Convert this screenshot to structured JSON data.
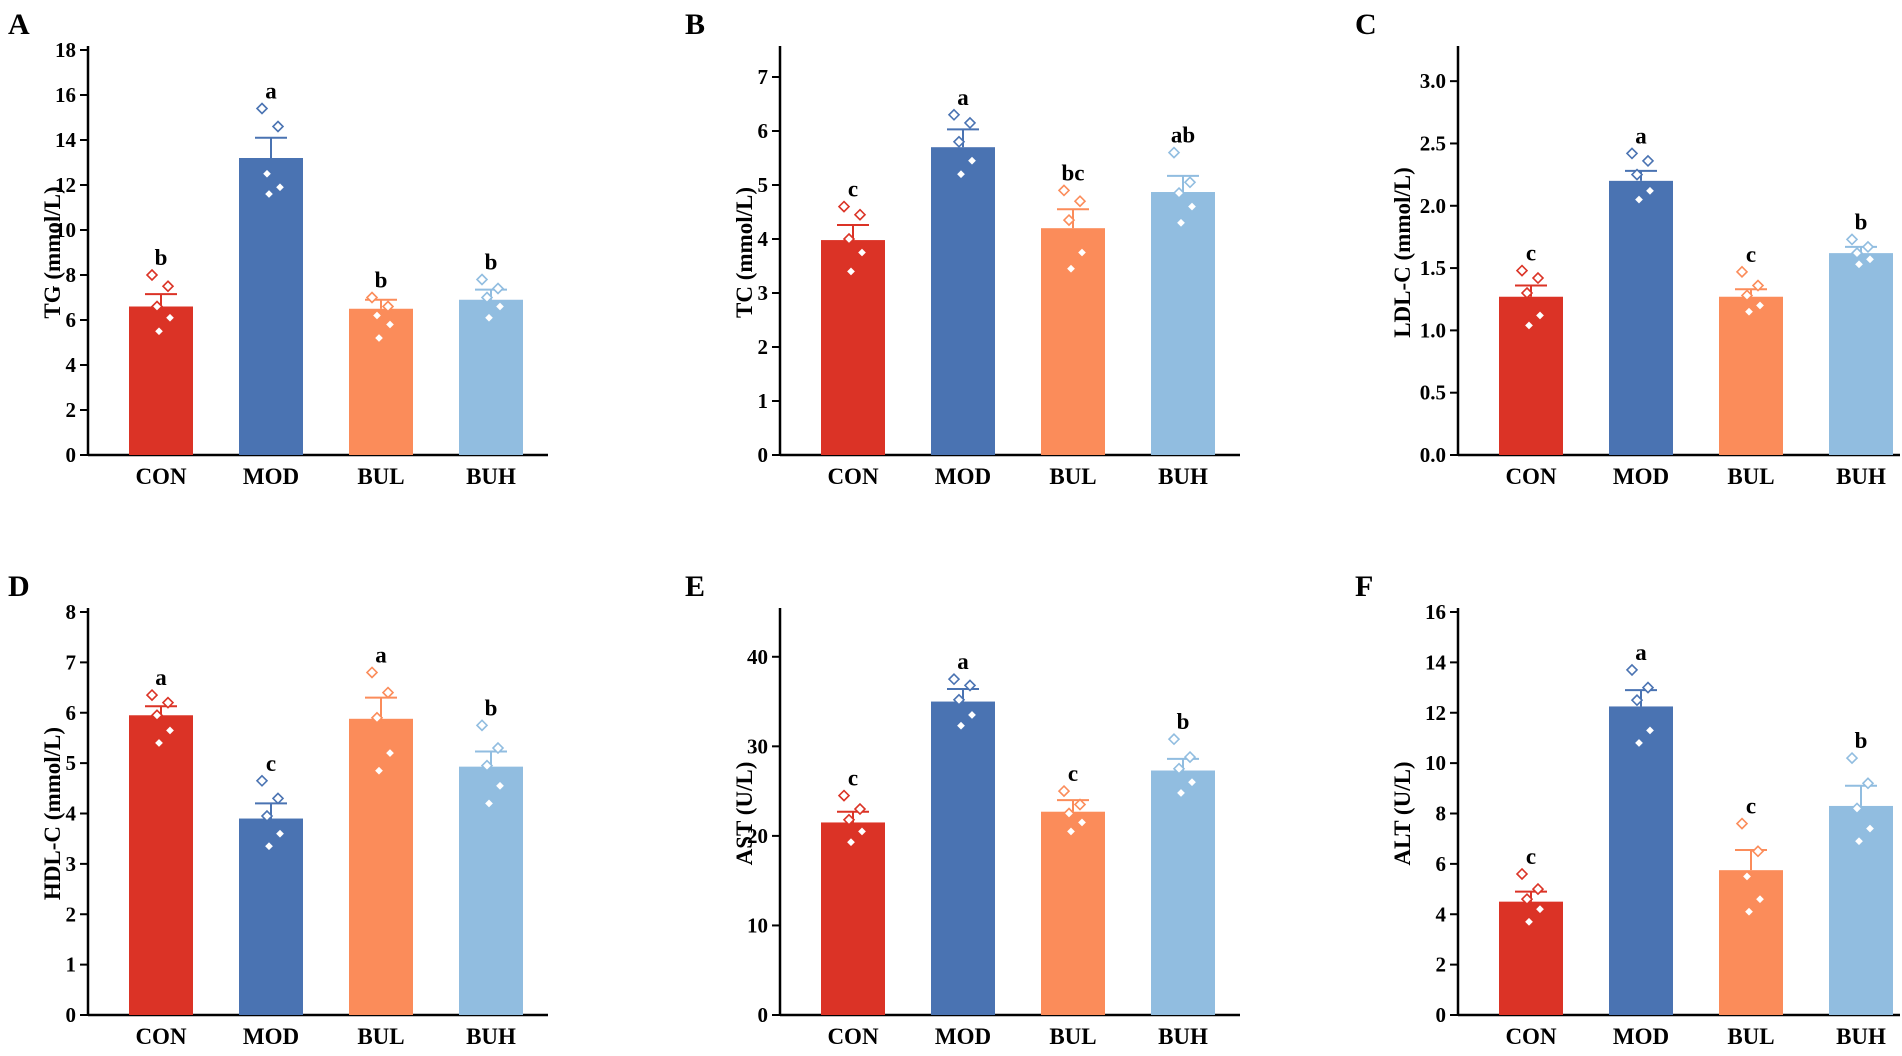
{
  "colors": {
    "CON": "#db3326",
    "MOD": "#4a73b2",
    "BUL": "#fb8c5a",
    "BUH": "#91bde0"
  },
  "chart_data": [
    {
      "panel": "A",
      "type": "bar",
      "ylabel": "TG (mmol/L)",
      "categories": [
        "CON",
        "MOD",
        "BUL",
        "BUH"
      ],
      "values": [
        6.6,
        13.2,
        6.5,
        6.9
      ],
      "errors": [
        0.55,
        0.9,
        0.4,
        0.45
      ],
      "significance": [
        "b",
        "a",
        "b",
        "b"
      ],
      "points": [
        [
          8.0,
          7.5,
          6.6,
          6.1,
          5.5
        ],
        [
          15.4,
          14.6,
          12.5,
          11.9,
          11.6
        ],
        [
          7.0,
          6.6,
          6.2,
          5.8,
          5.2
        ],
        [
          7.8,
          7.4,
          7.0,
          6.6,
          6.1
        ]
      ],
      "ylim": [
        0,
        18
      ],
      "yticks": [
        0,
        2,
        4,
        6,
        8,
        10,
        12,
        14,
        16,
        18
      ],
      "ytick_labels": [
        "0",
        "2",
        "4",
        "6",
        "8",
        "10",
        "12",
        "14",
        "16",
        "18"
      ]
    },
    {
      "panel": "B",
      "type": "bar",
      "ylabel": "TC (mmol/L)",
      "categories": [
        "CON",
        "MOD",
        "BUL",
        "BUH"
      ],
      "values": [
        3.98,
        5.7,
        4.2,
        4.87
      ],
      "errors": [
        0.28,
        0.33,
        0.35,
        0.3
      ],
      "significance": [
        "c",
        "a",
        "bc",
        "ab"
      ],
      "points": [
        [
          4.6,
          4.45,
          4.0,
          3.75,
          3.4
        ],
        [
          6.3,
          6.15,
          5.8,
          5.45,
          5.2
        ],
        [
          4.9,
          4.7,
          4.35,
          3.75,
          3.45
        ],
        [
          5.6,
          5.05,
          4.85,
          4.6,
          4.3
        ]
      ],
      "ylim": [
        0,
        7.5
      ],
      "yticks": [
        0,
        1,
        2,
        3,
        4,
        5,
        6,
        7
      ],
      "ytick_labels": [
        "0",
        "1",
        "2",
        "3",
        "4",
        "5",
        "6",
        "7"
      ]
    },
    {
      "panel": "C",
      "type": "bar",
      "ylabel": "LDL-C (mmol/L)",
      "categories": [
        "CON",
        "MOD",
        "BUL",
        "BUH"
      ],
      "values": [
        1.27,
        2.2,
        1.27,
        1.62
      ],
      "errors": [
        0.09,
        0.08,
        0.06,
        0.05
      ],
      "significance": [
        "c",
        "a",
        "c",
        "b"
      ],
      "points": [
        [
          1.48,
          1.42,
          1.3,
          1.12,
          1.04
        ],
        [
          2.42,
          2.36,
          2.25,
          2.12,
          2.05
        ],
        [
          1.47,
          1.36,
          1.28,
          1.2,
          1.15
        ],
        [
          1.73,
          1.67,
          1.62,
          1.57,
          1.53
        ]
      ],
      "ylim": [
        0,
        3.25
      ],
      "yticks": [
        0,
        0.5,
        1.0,
        1.5,
        2.0,
        2.5,
        3.0
      ],
      "ytick_labels": [
        "0.0",
        "0.5",
        "1.0",
        "1.5",
        "2.0",
        "2.5",
        "3.0"
      ]
    },
    {
      "panel": "D",
      "type": "bar",
      "ylabel": "HDL-C (mmol/L)",
      "categories": [
        "CON",
        "MOD",
        "BUL",
        "BUH"
      ],
      "values": [
        5.95,
        3.9,
        5.88,
        4.93
      ],
      "errors": [
        0.18,
        0.3,
        0.42,
        0.3
      ],
      "significance": [
        "a",
        "c",
        "a",
        "b"
      ],
      "points": [
        [
          6.35,
          6.2,
          5.95,
          5.65,
          5.4
        ],
        [
          4.65,
          4.3,
          3.95,
          3.6,
          3.35
        ],
        [
          6.8,
          6.4,
          5.9,
          5.2,
          4.85
        ],
        [
          5.75,
          5.3,
          4.95,
          4.55,
          4.2
        ]
      ],
      "ylim": [
        0,
        8
      ],
      "yticks": [
        0,
        1,
        2,
        3,
        4,
        5,
        6,
        7,
        8
      ],
      "ytick_labels": [
        "0",
        "1",
        "2",
        "3",
        "4",
        "5",
        "6",
        "7",
        "8"
      ]
    },
    {
      "panel": "E",
      "type": "bar",
      "ylabel": "AST (U/L)",
      "categories": [
        "CON",
        "MOD",
        "BUL",
        "BUH"
      ],
      "values": [
        21.5,
        35.0,
        22.7,
        27.3
      ],
      "errors": [
        1.2,
        1.4,
        1.3,
        1.3
      ],
      "significance": [
        "c",
        "a",
        "c",
        "b"
      ],
      "points": [
        [
          24.5,
          23.0,
          21.8,
          20.5,
          19.3
        ],
        [
          37.5,
          36.8,
          35.2,
          33.5,
          32.3
        ],
        [
          25.0,
          23.5,
          22.5,
          21.5,
          20.5
        ],
        [
          30.8,
          28.8,
          27.5,
          26.0,
          24.8
        ]
      ],
      "ylim": [
        0,
        45
      ],
      "yticks": [
        0,
        10,
        20,
        30,
        40
      ],
      "ytick_labels": [
        "0",
        "10",
        "20",
        "30",
        "40"
      ]
    },
    {
      "panel": "F",
      "type": "bar",
      "ylabel": "ALT (U/L)",
      "categories": [
        "CON",
        "MOD",
        "BUL",
        "BUH"
      ],
      "values": [
        4.5,
        12.25,
        5.75,
        8.3
      ],
      "errors": [
        0.4,
        0.65,
        0.8,
        0.8
      ],
      "significance": [
        "c",
        "a",
        "c",
        "b"
      ],
      "points": [
        [
          5.6,
          5.0,
          4.6,
          4.2,
          3.7
        ],
        [
          13.7,
          13.0,
          12.5,
          11.3,
          10.8
        ],
        [
          7.6,
          6.5,
          5.5,
          4.6,
          4.1
        ],
        [
          10.2,
          9.2,
          8.2,
          7.4,
          6.9
        ]
      ],
      "ylim": [
        0,
        16
      ],
      "yticks": [
        0,
        2,
        4,
        6,
        8,
        10,
        12,
        14,
        16
      ],
      "ytick_labels": [
        "0",
        "2",
        "4",
        "6",
        "8",
        "10",
        "12",
        "14",
        "16"
      ]
    }
  ]
}
